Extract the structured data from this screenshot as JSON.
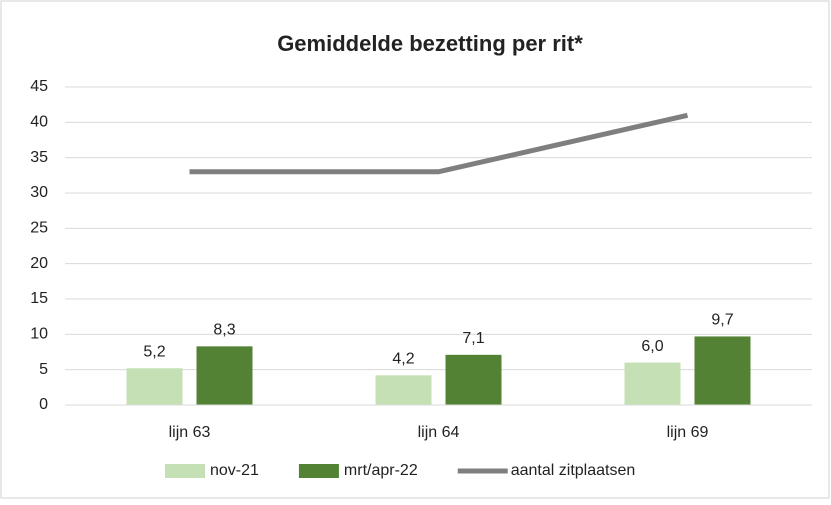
{
  "chart_data": {
    "type": "bar",
    "title": "Gemiddelde bezetting per rit*",
    "categories": [
      "lijn 63",
      "lijn 64",
      "lijn 69"
    ],
    "series": [
      {
        "name": "nov-21",
        "color": "#c5e0b4",
        "values": [
          5.2,
          4.2,
          6.0
        ],
        "value_labels": [
          "5,2",
          "4,2",
          "6,0"
        ]
      },
      {
        "name": "mrt/apr-22",
        "color": "#548235",
        "values": [
          8.3,
          7.1,
          9.7
        ],
        "value_labels": [
          "8,3",
          "7,1",
          "9,7"
        ]
      },
      {
        "name": "aantal zitplaatsen",
        "color": "#7f7f7f",
        "type": "line",
        "values": [
          33,
          33,
          41
        ]
      }
    ],
    "ylim": [
      0,
      45
    ],
    "yticks": [
      0,
      5,
      10,
      15,
      20,
      25,
      30,
      35,
      40,
      45
    ],
    "grid": true,
    "legend": "bottom"
  }
}
